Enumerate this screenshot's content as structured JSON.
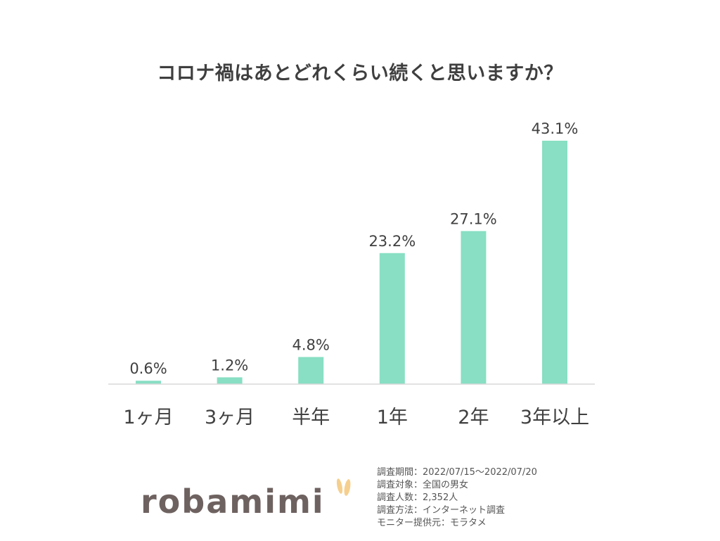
{
  "chart_data": {
    "type": "bar",
    "title": "コロナ禍はあとどれくらい続くと思いますか？",
    "categories": [
      "1ヶ月",
      "3ヶ月",
      "半年",
      "1年",
      "2年",
      "3年以上"
    ],
    "values": [
      0.6,
      1.2,
      4.8,
      23.2,
      27.1,
      43.1
    ],
    "value_labels": [
      "0.6%",
      "1.2%",
      "4.8%",
      "23.2%",
      "27.1%",
      "43.1%"
    ],
    "xlabel": "",
    "ylabel": "",
    "ylim": [
      0,
      43.1
    ],
    "grid": false,
    "legend": "none",
    "bar_color": "#88dfc3"
  },
  "survey_info": [
    "調査期間：2022/07/15～2022/07/20",
    "調査対象：全国の男女",
    "調査人数：2,352人",
    "調査方法：インターネット調査",
    "モニター提供元：モラタメ"
  ],
  "logo": {
    "text": "robamimi",
    "text_color": "#6e6260",
    "ear_color": "#f6cf8e",
    "icon": "rabbit-ears-icon"
  }
}
